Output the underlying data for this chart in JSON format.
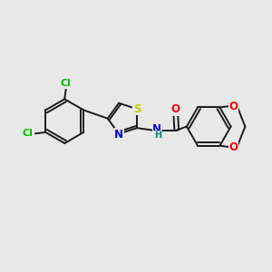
{
  "bg": "#e8e8e8",
  "bond_color": "#1a1a1a",
  "bond_width": 1.4,
  "atom_colors": {
    "S": "#cccc00",
    "N": "#0000ff",
    "O": "#ff0000",
    "Cl": "#00bb00",
    "H": "#008888"
  },
  "font_size": 8.5,
  "dbo": 0.08
}
